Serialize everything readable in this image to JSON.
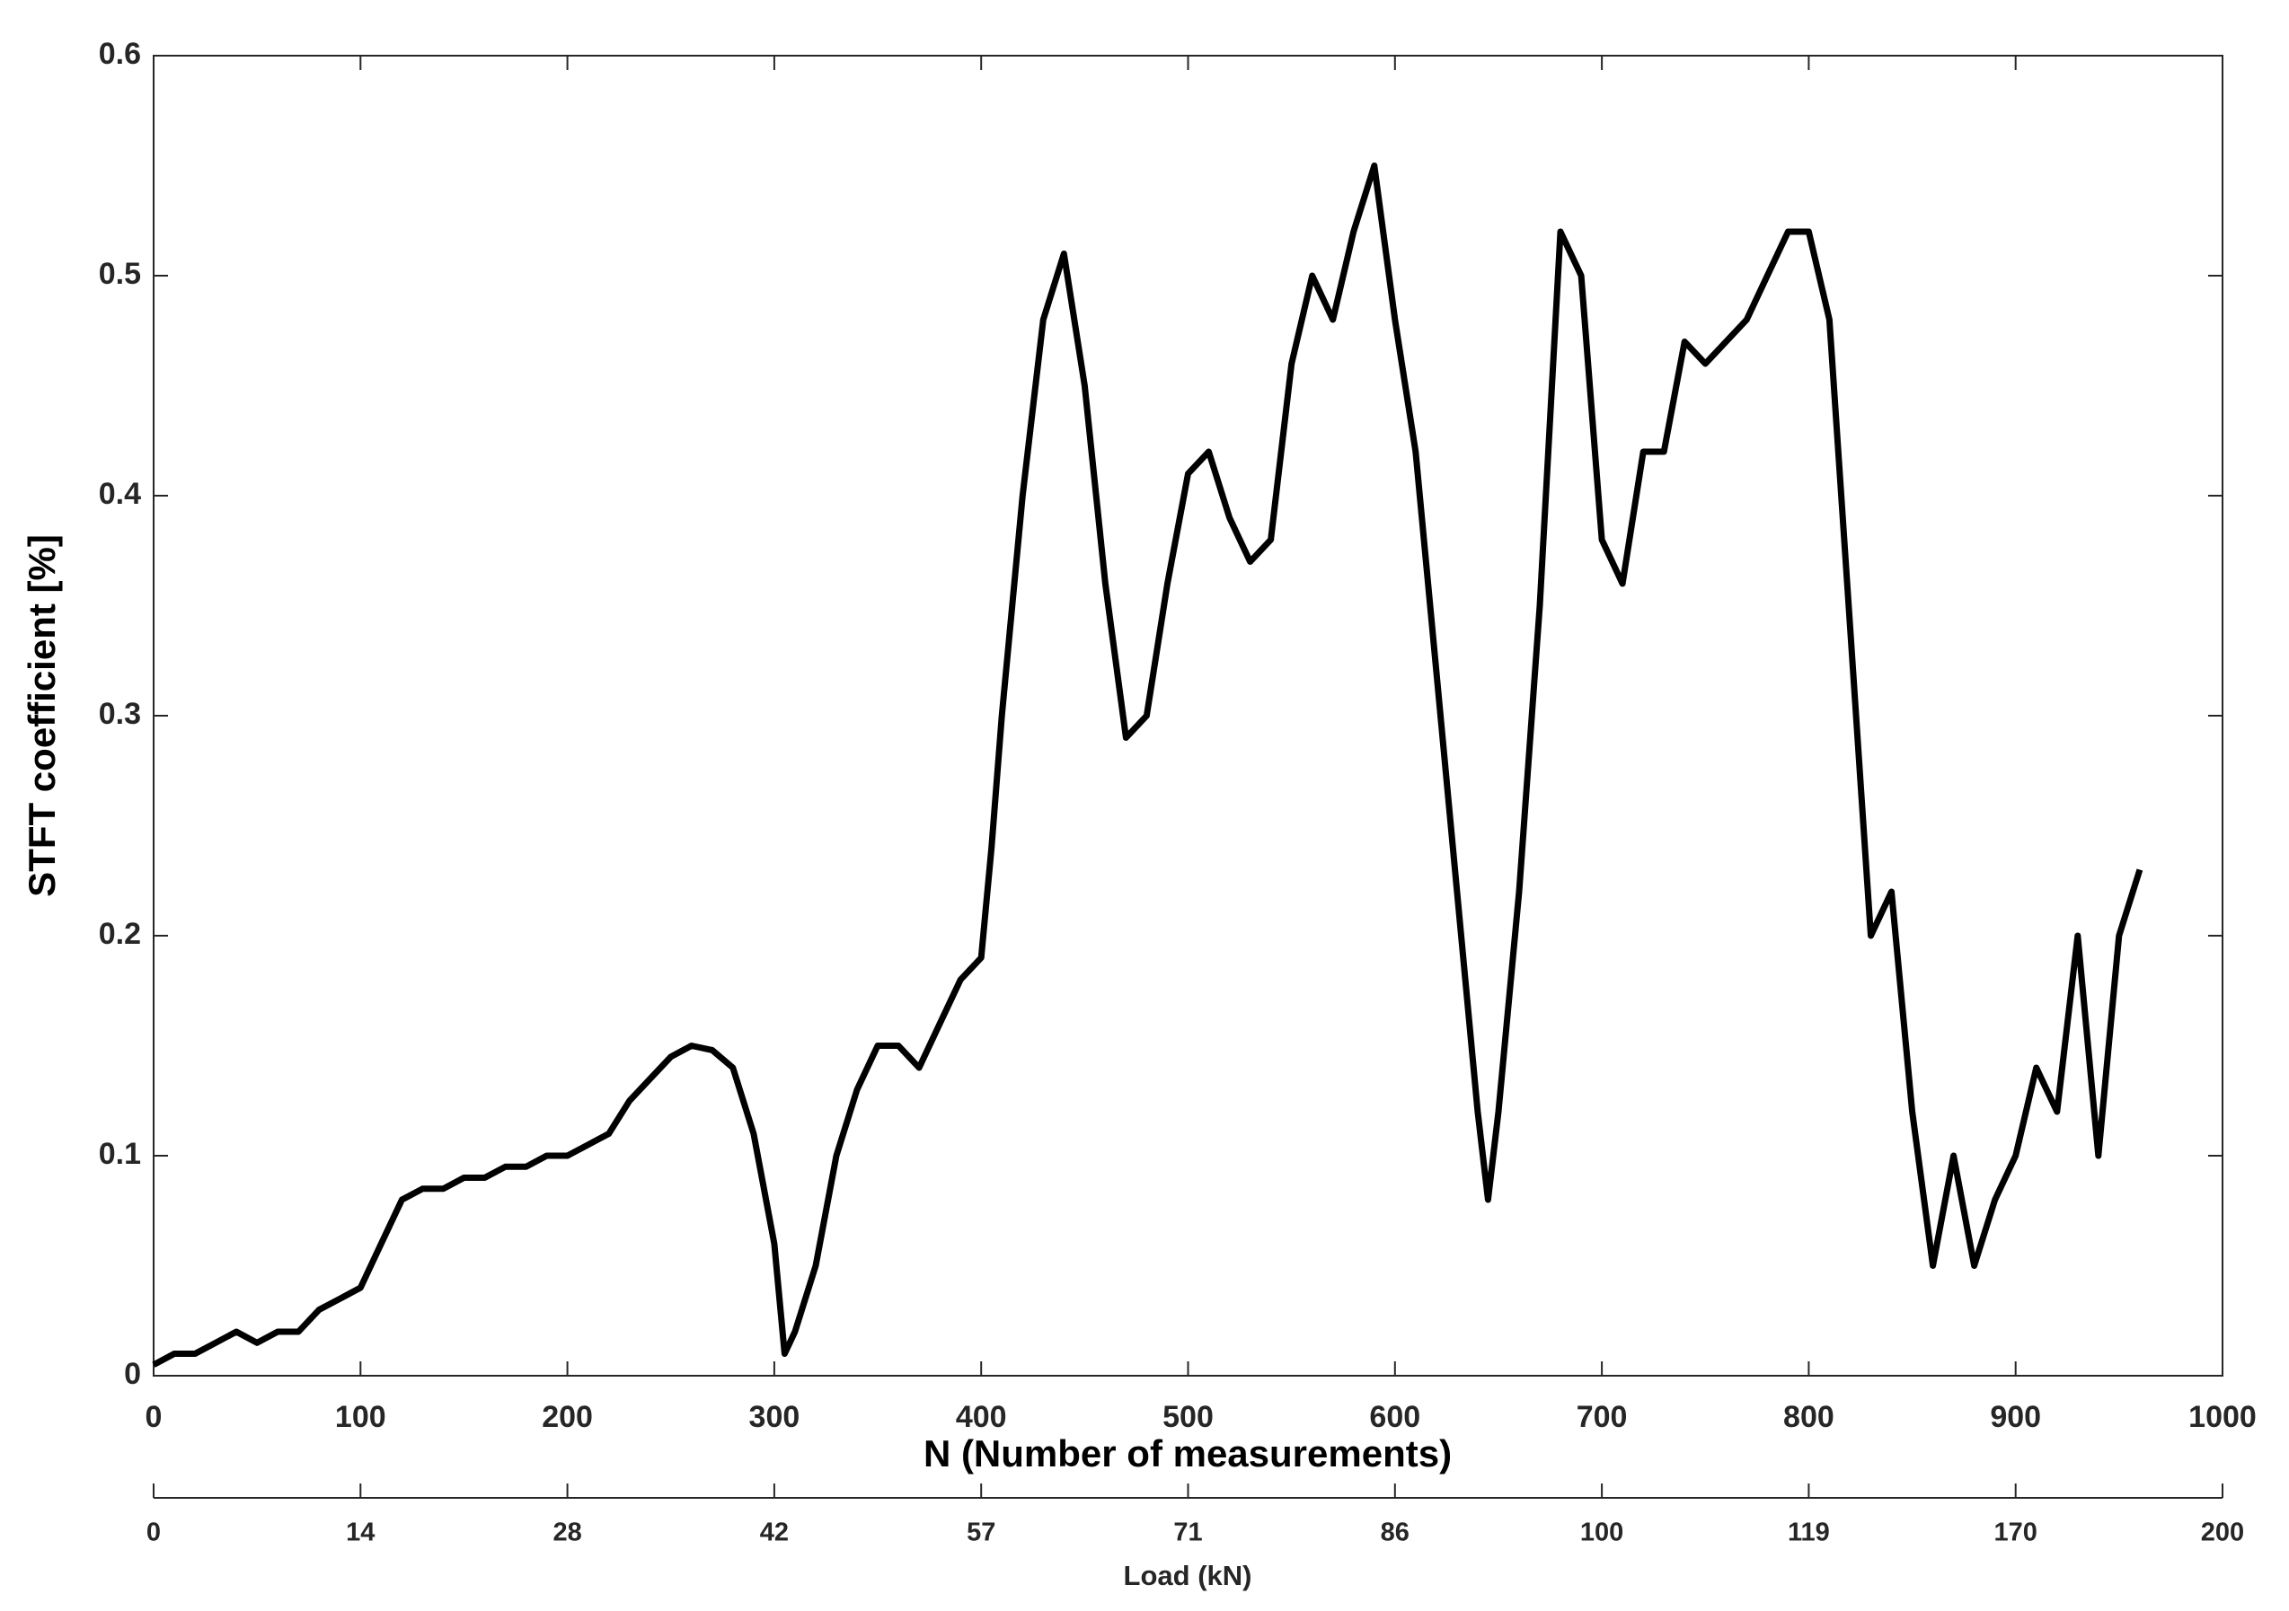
{
  "chart_data": {
    "type": "line",
    "xlabel": "N (Number of measurements)",
    "ylabel": "STFT coefficient [%]",
    "x2label": "Load (kN)",
    "x": [
      0,
      10,
      20,
      30,
      40,
      50,
      60,
      70,
      80,
      90,
      100,
      110,
      120,
      130,
      140,
      150,
      160,
      170,
      180,
      190,
      200,
      210,
      220,
      230,
      240,
      250,
      260,
      270,
      280,
      290,
      300,
      305,
      310,
      320,
      330,
      340,
      350,
      360,
      370,
      380,
      390,
      400,
      405,
      410,
      420,
      430,
      440,
      450,
      460,
      470,
      480,
      490,
      500,
      510,
      520,
      530,
      540,
      550,
      560,
      570,
      580,
      590,
      600,
      610,
      620,
      630,
      640,
      645,
      650,
      660,
      670,
      680,
      690,
      700,
      710,
      720,
      730,
      740,
      750,
      760,
      770,
      780,
      790,
      800,
      810,
      820,
      830,
      840,
      850,
      860,
      870,
      880,
      890,
      900,
      910,
      920,
      930,
      940,
      950,
      960
    ],
    "series": [
      {
        "color": "#000000",
        "values": [
          0.005,
          0.01,
          0.01,
          0.015,
          0.02,
          0.015,
          0.02,
          0.02,
          0.03,
          0.035,
          0.04,
          0.06,
          0.08,
          0.085,
          0.085,
          0.09,
          0.09,
          0.095,
          0.095,
          0.1,
          0.1,
          0.105,
          0.11,
          0.125,
          0.135,
          0.145,
          0.15,
          0.148,
          0.14,
          0.11,
          0.06,
          0.01,
          0.02,
          0.05,
          0.1,
          0.13,
          0.15,
          0.15,
          0.14,
          0.16,
          0.18,
          0.19,
          0.24,
          0.3,
          0.4,
          0.48,
          0.51,
          0.45,
          0.36,
          0.29,
          0.3,
          0.36,
          0.41,
          0.42,
          0.39,
          0.37,
          0.38,
          0.46,
          0.5,
          0.48,
          0.52,
          0.55,
          0.48,
          0.42,
          0.32,
          0.22,
          0.12,
          0.08,
          0.12,
          0.22,
          0.35,
          0.52,
          0.5,
          0.38,
          0.36,
          0.42,
          0.42,
          0.47,
          0.46,
          0.47,
          0.48,
          0.5,
          0.52,
          0.52,
          0.48,
          0.34,
          0.2,
          0.22,
          0.12,
          0.05,
          0.1,
          0.05,
          0.08,
          0.1,
          0.14,
          0.12,
          0.2,
          0.1,
          0.2,
          0.23
        ]
      }
    ],
    "xlim": [
      0,
      1000
    ],
    "xticks": [
      0,
      100,
      200,
      300,
      400,
      500,
      600,
      700,
      800,
      900,
      1000
    ],
    "ylim": [
      0,
      0.6
    ],
    "yticks": [
      0,
      0.1,
      0.2,
      0.3,
      0.4,
      0.5,
      0.6
    ],
    "x2ticks": [
      {
        "value": 0,
        "label": "0"
      },
      {
        "value": 100,
        "label": "14"
      },
      {
        "value": 200,
        "label": "28"
      },
      {
        "value": 300,
        "label": "42"
      },
      {
        "value": 400,
        "label": "57"
      },
      {
        "value": 500,
        "label": "71"
      },
      {
        "value": 600,
        "label": "86"
      },
      {
        "value": 700,
        "label": "100"
      },
      {
        "value": 800,
        "label": "119"
      },
      {
        "value": 900,
        "label": "170"
      },
      {
        "value": 1000,
        "label": "200"
      }
    ]
  }
}
